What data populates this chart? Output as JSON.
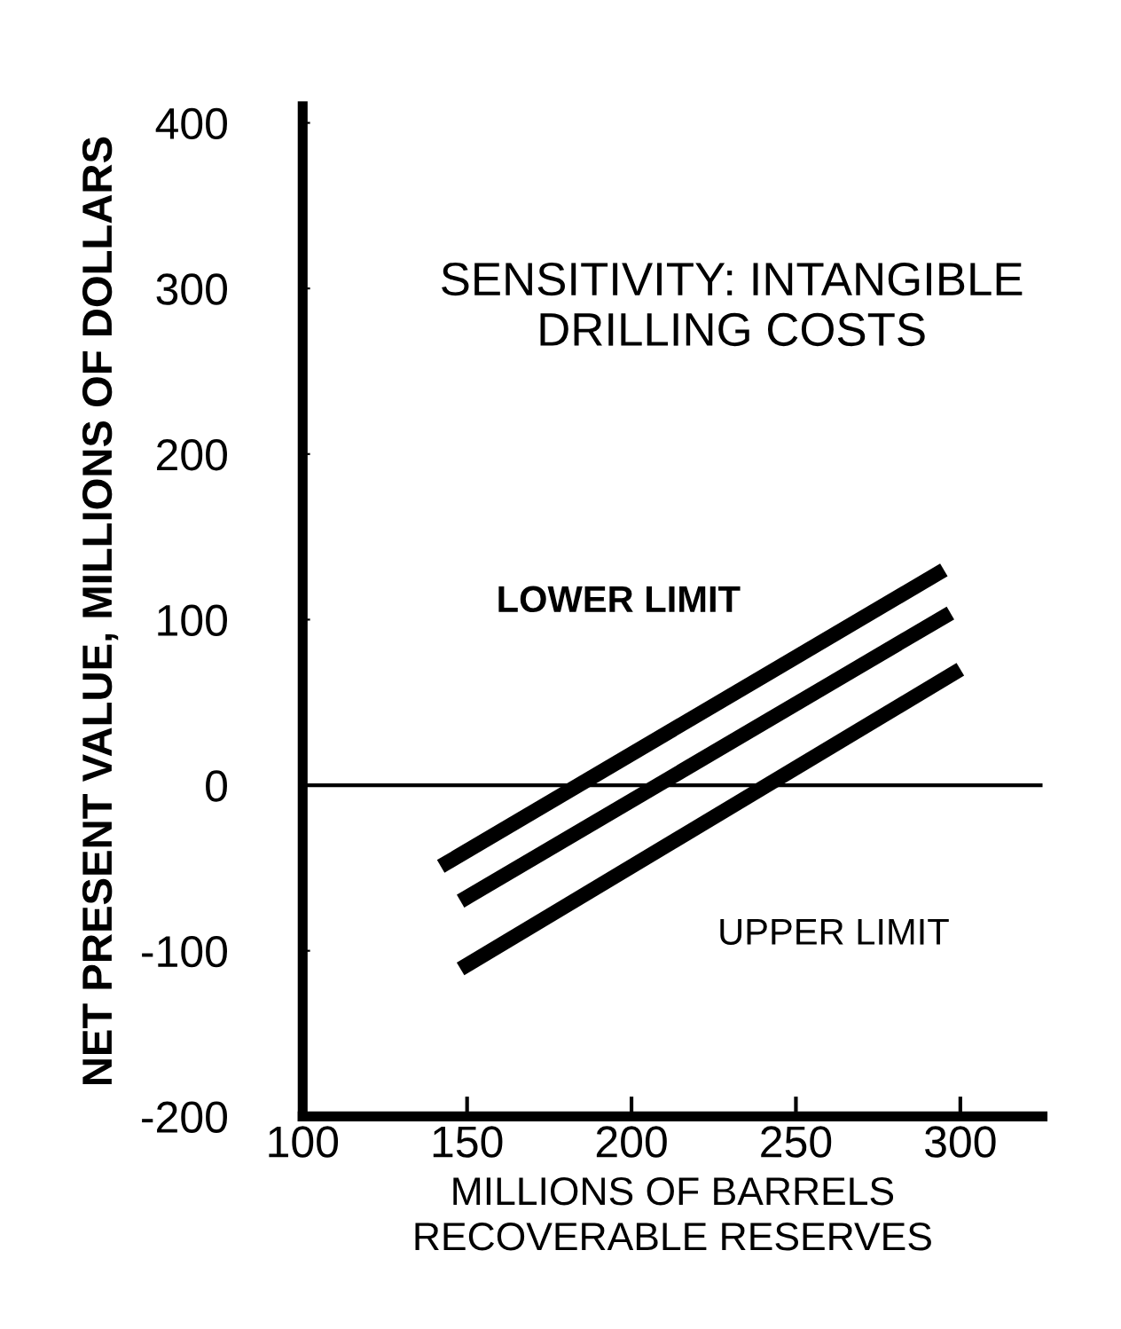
{
  "chart_data": {
    "type": "line",
    "title": "SENSITIVITY: INTANGIBLE DRILLING COSTS",
    "xlabel": "MILLIONS OF BARRELS\nRECOVERABLE RESERVES",
    "ylabel": "NET PRESENT VALUE, MILLIONS OF DOLLARS",
    "series": [
      {
        "name": "LOWER LIMIT",
        "color": "#000000",
        "x": [
          142,
          295
        ],
        "values": [
          -49,
          130
        ]
      },
      {
        "color": "#000000",
        "x": [
          148,
          297
        ],
        "values": [
          -70,
          104
        ]
      },
      {
        "name": "UPPER LIMIT",
        "color": "#000000",
        "x": [
          148,
          300
        ],
        "values": [
          -111,
          70
        ]
      }
    ],
    "xlim": [
      100,
      325
    ],
    "xticks": [
      100,
      150,
      200,
      250,
      300
    ],
    "ylim": [
      -200,
      410
    ],
    "yticks": [
      -200,
      -100,
      0,
      100,
      200,
      300,
      400
    ],
    "ref_lines": [
      {
        "axis": "y",
        "value": 0,
        "color": "#000000"
      }
    ],
    "grid": false,
    "legend": false,
    "marker": "none",
    "line_style": "solid"
  }
}
